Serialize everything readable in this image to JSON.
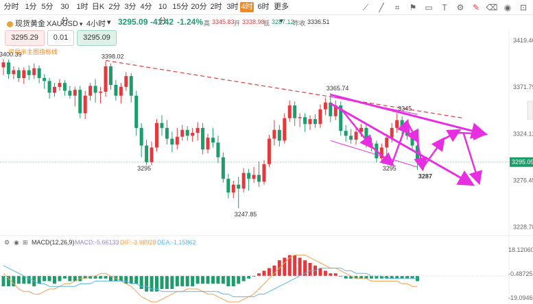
{
  "toolbar": {
    "timeframes": [
      "分时",
      "1分",
      "5分",
      "30分",
      "1时",
      "日K",
      "2分",
      "3分",
      "4分",
      "10分",
      "15分",
      "20分",
      "2时",
      "3时",
      "4时",
      "6时",
      "更多"
    ],
    "active_timeframe": "4时",
    "tools": [
      "trend-line-icon",
      "ray-icon",
      "measure-icon",
      "flag-icon",
      "ruler-icon",
      "text-icon",
      "settings-icon",
      "drawing-active-icon",
      "delete-icon",
      "eye-icon",
      "camera-icon"
    ]
  },
  "symbol": {
    "name": "现货黄金",
    "code": "XAUUSD",
    "period": "4小时",
    "price": "3295.09",
    "change": "-41.42",
    "change_pct": "-1.24%",
    "high_label": "高",
    "high": "3345.83",
    "open_label": "开",
    "open": "3338.98",
    "low_label": "低",
    "low": "3287.12",
    "prev_label": "昨收",
    "prev": "3336.51"
  },
  "trade": {
    "bid": "3295.29",
    "qty": "0.01",
    "ask": "3295.09"
  },
  "overlay_note": "可显示主图指标线",
  "price_axis": [
    "3419.46",
    "3371.79",
    "3324.12",
    "3276.45",
    "3228.78"
  ],
  "current_price_tag": "3295.09",
  "macd_header": {
    "name": "MACD(12,26,9)",
    "macd": "MACD:-5.66133",
    "dif": "DIF:-3.98928",
    "dea": "DEA:-1.15862"
  },
  "macd_axis": [
    "18.12060",
    "-0.48725",
    "-19.09460"
  ],
  "colors": {
    "up": "#e0393e",
    "down": "#1d9c6c",
    "forecast": "#e72ee0",
    "accent": "#f08a24",
    "dif": "#f0a050",
    "dea": "#5ab4e8"
  },
  "chart_data": {
    "type": "candlestick",
    "ylim": [
      3220,
      3430
    ],
    "annotations": [
      {
        "text": "3400.39",
        "x": 0,
        "y": 3400.39
      },
      {
        "text": "3398.02",
        "x": 20,
        "y": 3398.02
      },
      {
        "text": "3295",
        "x": 27,
        "y": 3295
      },
      {
        "text": "3247.85",
        "x": 46,
        "y": 3247.85
      },
      {
        "text": "3365.74",
        "x": 64,
        "y": 3365.74
      },
      {
        "text": "3345",
        "x": 78,
        "y": 3345
      },
      {
        "text": "3295",
        "x": 75,
        "y": 3295
      },
      {
        "text": "3287",
        "x": 82,
        "y": 3287
      }
    ],
    "candles": [
      [
        3392,
        3397,
        3384,
        3400.39
      ],
      [
        3397,
        3385,
        3380,
        3400
      ],
      [
        3385,
        3389,
        3380,
        3393
      ],
      [
        3389,
        3381,
        3377,
        3392
      ],
      [
        3381,
        3389,
        3375,
        3392
      ],
      [
        3389,
        3384,
        3379,
        3394
      ],
      [
        3384,
        3391,
        3380,
        3396
      ],
      [
        3391,
        3381,
        3376,
        3394
      ],
      [
        3381,
        3378,
        3370,
        3385
      ],
      [
        3378,
        3366,
        3360,
        3381
      ],
      [
        3366,
        3372,
        3362,
        3376
      ],
      [
        3372,
        3376,
        3368,
        3380
      ],
      [
        3376,
        3368,
        3363,
        3379
      ],
      [
        3368,
        3363,
        3360,
        3373
      ],
      [
        3363,
        3369,
        3352,
        3372
      ],
      [
        3369,
        3345,
        3340,
        3373
      ],
      [
        3345,
        3363,
        3339,
        3368
      ],
      [
        3363,
        3373,
        3358,
        3376
      ],
      [
        3373,
        3366,
        3356,
        3380
      ],
      [
        3366,
        3367,
        3355,
        3372
      ],
      [
        3367,
        3393,
        3362,
        3398.02
      ],
      [
        3393,
        3374,
        3369,
        3396
      ],
      [
        3374,
        3363,
        3358,
        3379
      ],
      [
        3363,
        3372,
        3355,
        3376
      ],
      [
        3372,
        3383,
        3368,
        3387
      ],
      [
        3383,
        3363,
        3356,
        3386
      ],
      [
        3363,
        3330,
        3322,
        3368
      ],
      [
        3330,
        3312,
        3300,
        3335
      ],
      [
        3312,
        3295,
        3292,
        3318
      ],
      [
        3295,
        3310,
        3292,
        3316
      ],
      [
        3310,
        3335,
        3306,
        3339
      ],
      [
        3335,
        3330,
        3322,
        3343
      ],
      [
        3330,
        3319,
        3313,
        3338
      ],
      [
        3319,
        3313,
        3305,
        3326
      ],
      [
        3313,
        3321,
        3308,
        3330
      ],
      [
        3321,
        3328,
        3317,
        3333
      ],
      [
        3328,
        3322,
        3317,
        3332
      ],
      [
        3322,
        3325,
        3316,
        3330
      ],
      [
        3325,
        3330,
        3317,
        3336
      ],
      [
        3330,
        3308,
        3303,
        3335
      ],
      [
        3308,
        3320,
        3304,
        3324
      ],
      [
        3320,
        3315,
        3310,
        3330
      ],
      [
        3315,
        3300,
        3294,
        3322
      ],
      [
        3300,
        3278,
        3274,
        3305
      ],
      [
        3278,
        3264,
        3258,
        3283
      ],
      [
        3264,
        3272,
        3258,
        3276
      ],
      [
        3272,
        3268,
        3247.85,
        3280
      ],
      [
        3268,
        3284,
        3264,
        3289
      ],
      [
        3284,
        3278,
        3266,
        3288
      ],
      [
        3278,
        3282,
        3274,
        3290
      ],
      [
        3282,
        3275,
        3270,
        3296
      ],
      [
        3275,
        3293,
        3272,
        3297
      ],
      [
        3293,
        3319,
        3290,
        3323
      ],
      [
        3319,
        3328,
        3312,
        3338
      ],
      [
        3328,
        3317,
        3311,
        3333
      ],
      [
        3317,
        3340,
        3314,
        3345
      ],
      [
        3340,
        3353,
        3336,
        3358
      ],
      [
        3353,
        3340,
        3332,
        3357
      ],
      [
        3340,
        3341,
        3331,
        3345
      ],
      [
        3341,
        3334,
        3326,
        3345
      ],
      [
        3334,
        3339,
        3328,
        3343
      ],
      [
        3339,
        3334,
        3330,
        3344
      ],
      [
        3334,
        3349,
        3330,
        3354
      ],
      [
        3349,
        3356,
        3343,
        3361
      ],
      [
        3356,
        3342,
        3336,
        3365.74
      ],
      [
        3342,
        3353,
        3338,
        3358
      ],
      [
        3353,
        3327,
        3322,
        3357
      ],
      [
        3327,
        3322,
        3316,
        3333
      ],
      [
        3322,
        3318,
        3314,
        3329
      ],
      [
        3318,
        3326,
        3313,
        3331
      ],
      [
        3326,
        3330,
        3321,
        3334
      ],
      [
        3330,
        3314,
        3310,
        3333
      ],
      [
        3314,
        3314,
        3306,
        3320
      ],
      [
        3314,
        3299,
        3295,
        3317
      ],
      [
        3299,
        3310,
        3295,
        3314
      ],
      [
        3310,
        3320,
        3302,
        3324
      ],
      [
        3320,
        3330,
        3315,
        3335
      ],
      [
        3330,
        3338,
        3325,
        3345
      ],
      [
        3338,
        3330,
        3323,
        3342
      ],
      [
        3330,
        3322,
        3318,
        3336
      ],
      [
        3322,
        3312,
        3308,
        3326
      ],
      [
        3312,
        3295.09,
        3287,
        3318
      ]
    ],
    "forecast_path": [
      [
        3,
        3324
      ],
      [
        79,
        3289
      ],
      [
        84,
        3309
      ],
      [
        89,
        3324
      ],
      [
        91.5,
        3280
      ]
    ],
    "forecast_lines": [
      [
        [
          64,
          3364
        ],
        [
          94,
          3324
        ]
      ],
      [
        [
          64,
          3355
        ],
        [
          91.5,
          3273
        ]
      ]
    ],
    "channel_lines": [
      [
        [
          64,
          3362
        ],
        [
          81,
          3344
        ]
      ],
      [
        [
          64,
          3317
        ],
        [
          81,
          3290
        ]
      ]
    ],
    "trend_line_dashed": [
      [
        20,
        3399
      ],
      [
        90,
        3340
      ]
    ],
    "arrows": [
      [
        [
          66,
          3350
        ],
        [
          72,
          3311
        ]
      ],
      [
        [
          72,
          3311
        ],
        [
          76,
          3293
        ]
      ],
      [
        [
          76,
          3293
        ],
        [
          79,
          3336
        ]
      ],
      [
        [
          79,
          3336
        ],
        [
          81,
          3317
        ]
      ],
      [
        [
          81,
          3317
        ],
        [
          82,
          3289
        ]
      ],
      [
        [
          82,
          3289
        ],
        [
          86,
          3318
        ]
      ],
      [
        [
          86,
          3318
        ],
        [
          89,
          3327
        ]
      ],
      [
        [
          89,
          3325
        ],
        [
          94,
          3324
        ]
      ],
      [
        [
          90,
          3325
        ],
        [
          93,
          3275
        ]
      ]
    ],
    "macd_hist": [
      -4,
      -4,
      -4,
      -3,
      -3,
      -3,
      -4,
      -3,
      -2,
      -2,
      -3,
      -2,
      -1,
      -2,
      -2,
      -2,
      -1,
      -1,
      -1,
      -1,
      -1,
      -2,
      -2,
      -2,
      -3,
      -3,
      -3,
      -5,
      -6,
      -6,
      -6,
      -5,
      -5,
      -5,
      -4,
      -4,
      -4,
      -4,
      -3,
      -3,
      -3,
      -3,
      -3,
      -3,
      -4,
      -4,
      -3,
      -2,
      -1,
      0,
      1,
      2,
      3,
      4,
      6,
      7,
      8,
      8,
      7,
      6,
      5,
      4,
      3,
      2,
      1,
      1,
      0,
      -1,
      -1,
      -1,
      -1,
      -1,
      -1,
      -1,
      -1,
      -1,
      -1,
      -1,
      -1,
      -1,
      -1,
      -2
    ],
    "dif": [
      1,
      -1,
      -3,
      -5,
      -6,
      -6,
      -7,
      -7,
      -6,
      -5,
      -5,
      -4,
      -3,
      -3,
      -2,
      -1,
      -1,
      0,
      0,
      1,
      1,
      0,
      -1,
      -2,
      -3,
      -4,
      -6,
      -8,
      -9,
      -10,
      -10,
      -9,
      -8,
      -7,
      -6,
      -6,
      -5,
      -5,
      -5,
      -6,
      -7,
      -7,
      -8,
      -9,
      -10,
      -10,
      -10,
      -9,
      -8,
      -7,
      -5,
      -3,
      -1,
      1,
      3,
      5,
      7,
      8,
      8,
      8,
      7,
      6,
      5,
      4,
      3,
      3,
      2,
      1,
      0,
      -1,
      -1,
      -1,
      -2,
      -2,
      -2,
      -2,
      -2,
      -2,
      -3,
      -3,
      -4,
      -4
    ],
    "dea": [
      4,
      3,
      2,
      1,
      0,
      -1,
      -2,
      -3,
      -3,
      -4,
      -4,
      -4,
      -4,
      -4,
      -4,
      -3,
      -3,
      -3,
      -2,
      -2,
      -2,
      -2,
      -2,
      -2,
      -2,
      -3,
      -3,
      -4,
      -4,
      -5,
      -5,
      -6,
      -6,
      -6,
      -6,
      -6,
      -6,
      -6,
      -6,
      -6,
      -6,
      -6,
      -6,
      -7,
      -7,
      -8,
      -8,
      -8,
      -8,
      -8,
      -7,
      -7,
      -6,
      -5,
      -4,
      -3,
      -2,
      -1,
      0,
      1,
      2,
      2,
      3,
      3,
      3,
      3,
      3,
      2,
      2,
      1,
      1,
      1,
      0,
      0,
      0,
      -1,
      -1,
      -1,
      -1,
      -1,
      -1,
      -1
    ]
  }
}
